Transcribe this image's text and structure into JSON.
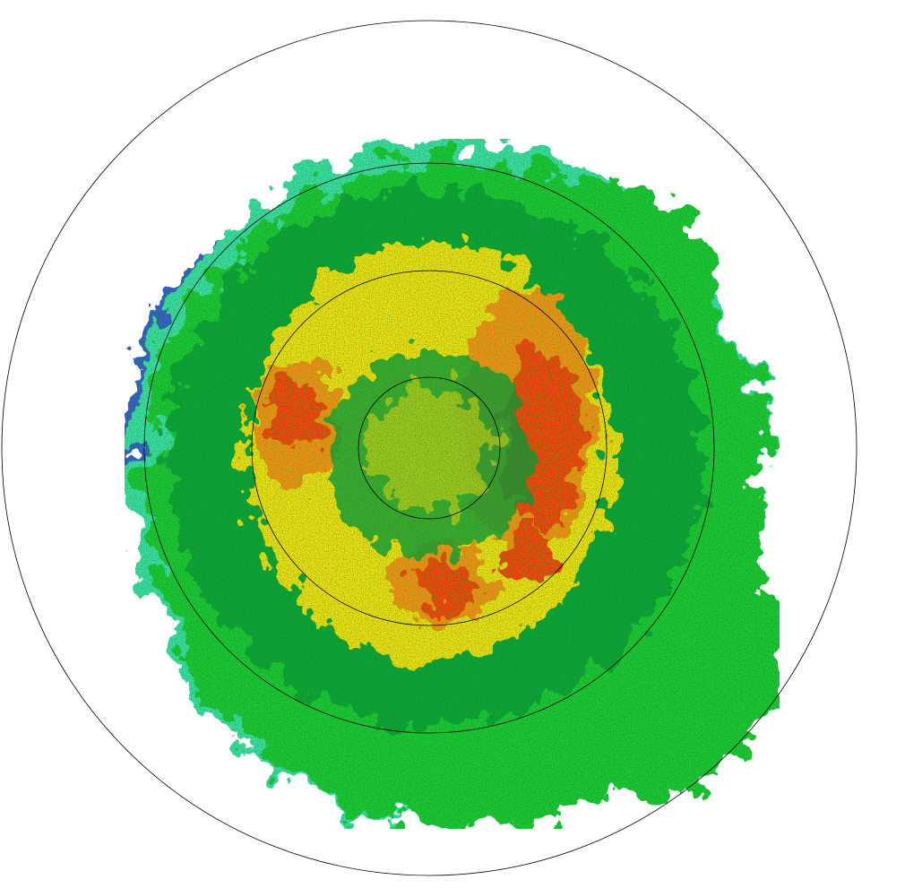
{
  "radar": {
    "colors": {
      "ring": "#000000",
      "blue": "#3a4fc8",
      "cyan": "#3fe0a8",
      "green": "#22c83a",
      "dark_green": "#139a3c",
      "yellow": "#f2e21a",
      "orange": "#f5901a",
      "red": "#f22a12",
      "background": "#ffffff"
    }
  }
}
